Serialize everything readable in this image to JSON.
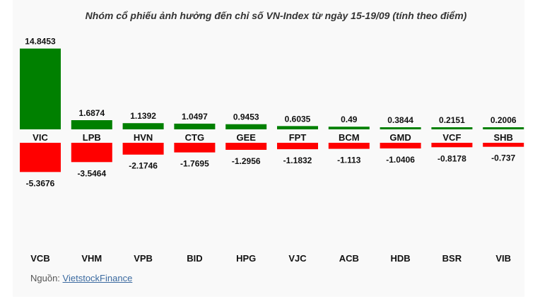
{
  "title": "Nhóm cổ phiếu ảnh hưởng đến chỉ số VN-Index từ ngày 15-19/09 (tính theo điểm)",
  "source": {
    "label": "Nguồn:",
    "link_text": "VietstockFinance"
  },
  "colors": {
    "positive": "#008000",
    "negative": "#ff0000",
    "background": "#f9f9f9"
  },
  "chart_data": {
    "type": "bar",
    "title": "Nhóm cổ phiếu ảnh hưởng đến chỉ số VN-Index từ ngày 15-19/09 (tính theo điểm)",
    "series": [
      {
        "categories": [
          "VIC",
          "LPB",
          "HVN",
          "CTG",
          "GEE",
          "FPT",
          "BCM",
          "GMD",
          "VCF",
          "SHB"
        ],
        "values": [
          14.8453,
          1.6874,
          1.1392,
          1.0497,
          0.9453,
          0.6035,
          0.49,
          0.3844,
          0.2151,
          0.2006
        ],
        "value_labels": [
          "14.8453",
          "1.6874",
          "1.1392",
          "1.0497",
          "0.9453",
          "0.6035",
          "0.49",
          "0.3844",
          "0.2151",
          "0.2006"
        ],
        "color": "#008000"
      },
      {
        "categories": [
          "VCB",
          "VHM",
          "VPB",
          "BID",
          "HPG",
          "VJC",
          "ACB",
          "HDB",
          "BSR",
          "VIB"
        ],
        "values": [
          -5.3676,
          -3.5464,
          -2.1746,
          -1.7695,
          -1.2956,
          -1.1832,
          -1.113,
          -1.0406,
          -0.8178,
          -0.737
        ],
        "value_labels": [
          "-5.3676",
          "-3.5464",
          "-2.1746",
          "-1.7695",
          "-1.2956",
          "-1.1832",
          "-1.113",
          "-1.0406",
          "-0.8178",
          "-0.737"
        ],
        "color": "#ff0000"
      }
    ]
  }
}
